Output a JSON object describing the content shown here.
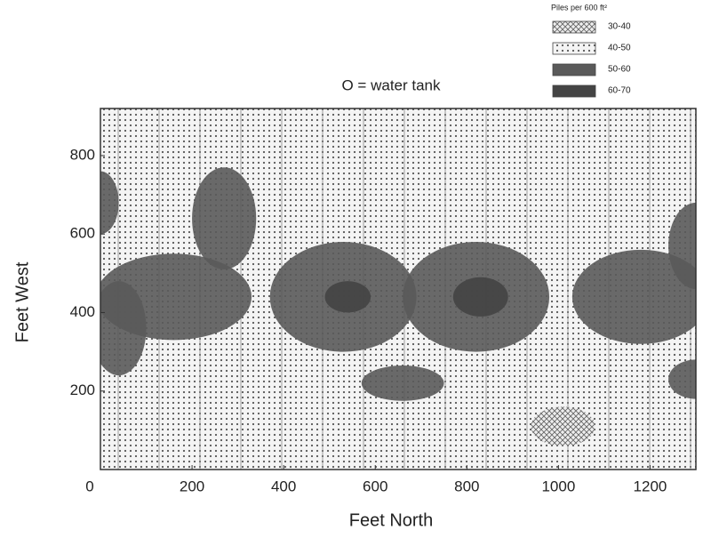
{
  "chart_data": {
    "type": "contour",
    "title": "O = water tank",
    "x_label": "Feet North",
    "y_label": "Feet West",
    "legend_title": "Piles per 600 ft²",
    "levels": [
      {
        "name": "30-40",
        "pattern": "crosshatch",
        "color": "#777777"
      },
      {
        "name": "40-50",
        "pattern": "dots",
        "color": "#555555"
      },
      {
        "name": "50-60",
        "pattern": "solid",
        "color": "#5a5a5a"
      },
      {
        "name": "60-70",
        "pattern": "solid",
        "color": "#444444"
      }
    ],
    "background_level": 1,
    "regions": [
      {
        "level": 2,
        "cx": 0,
        "cy": 680,
        "rx": 40,
        "ry": 80
      },
      {
        "level": 2,
        "cx": 160,
        "cy": 440,
        "rx": 170,
        "ry": 110
      },
      {
        "level": 2,
        "cx": 40,
        "cy": 360,
        "rx": 60,
        "ry": 120
      },
      {
        "level": 2,
        "cx": 270,
        "cy": 640,
        "rx": 70,
        "ry": 130
      },
      {
        "level": 2,
        "cx": 530,
        "cy": 440,
        "rx": 160,
        "ry": 140
      },
      {
        "level": 3,
        "cx": 540,
        "cy": 440,
        "rx": 50,
        "ry": 40
      },
      {
        "level": 2,
        "cx": 820,
        "cy": 440,
        "rx": 160,
        "ry": 140
      },
      {
        "level": 3,
        "cx": 830,
        "cy": 440,
        "rx": 60,
        "ry": 50
      },
      {
        "level": 2,
        "cx": 1180,
        "cy": 440,
        "rx": 150,
        "ry": 120
      },
      {
        "level": 2,
        "cx": 1300,
        "cy": 570,
        "rx": 60,
        "ry": 110
      },
      {
        "level": 2,
        "cx": 660,
        "cy": 220,
        "rx": 90,
        "ry": 45
      },
      {
        "level": 2,
        "cx": 1300,
        "cy": 230,
        "rx": 60,
        "ry": 50
      },
      {
        "level": 0,
        "cx": 1010,
        "cy": 110,
        "rx": 70,
        "ry": 50
      }
    ],
    "xlim": [
      0,
      1300
    ],
    "ylim": [
      0,
      920
    ],
    "xticks": [
      0,
      200,
      400,
      600,
      800,
      1000,
      1200
    ],
    "yticks": [
      200,
      400,
      600,
      800
    ]
  }
}
